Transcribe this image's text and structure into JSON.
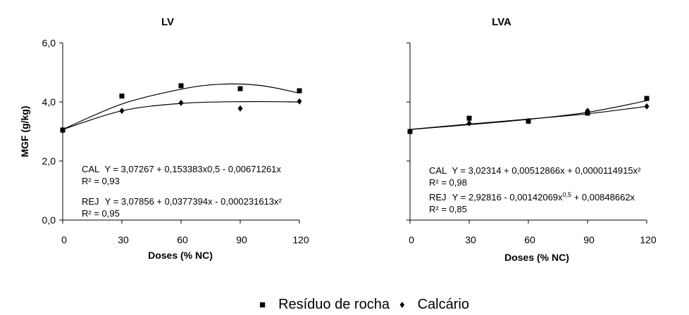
{
  "legend": {
    "residuo_symbol": "■",
    "residuo_label": "Resíduo de rocha",
    "calcario_symbol": "♦",
    "calcario_label": "Calcário"
  },
  "chart_data": [
    {
      "type": "scatter",
      "title": "LV",
      "xlabel": "Doses (% NC)",
      "ylabel": "MGF (g/kg)",
      "x_ticks": [
        "0",
        "30",
        "60",
        "90",
        "120"
      ],
      "y_ticks": [
        "0,0",
        "2,0",
        "4,0",
        "6,0"
      ],
      "xlim": [
        0,
        120
      ],
      "ylim": [
        0,
        6
      ],
      "grid": false,
      "series": [
        {
          "name": "Resíduo de rocha",
          "marker": "square",
          "x": [
            0,
            30,
            60,
            90,
            120
          ],
          "y": [
            3.05,
            4.2,
            4.55,
            4.45,
            4.38
          ],
          "fit": [
            [
              0,
              3.07
            ],
            [
              30,
              3.93
            ],
            [
              60,
              4.43
            ],
            [
              80,
              4.6
            ],
            [
              100,
              4.56
            ],
            [
              120,
              4.3
            ]
          ]
        },
        {
          "name": "Calcário",
          "marker": "diamond",
          "x": [
            0,
            30,
            60,
            90,
            120
          ],
          "y": [
            3.03,
            3.7,
            3.97,
            3.78,
            4.02
          ],
          "fit": [
            [
              0,
              3.07
            ],
            [
              30,
              3.7
            ],
            [
              60,
              3.95
            ],
            [
              90,
              4.01
            ],
            [
              120,
              4.0
            ]
          ]
        }
      ],
      "annotations": [
        {
          "label": "CAL",
          "equation": "Y = 3,07267 + 0,153383x0,5 - 0,00671261x",
          "r2": "R² = 0,93"
        },
        {
          "label": "REJ",
          "equation": "Y = 3,07856 + 0,0377394x - 0,000231613x²",
          "r2": "R² = 0,95"
        }
      ]
    },
    {
      "type": "scatter",
      "title": "LVA",
      "xlabel": "Doses (% NC)",
      "ylabel": "",
      "x_ticks": [
        "0",
        "30",
        "60",
        "90",
        "120"
      ],
      "xlim": [
        0,
        120
      ],
      "ylim": [
        0,
        6
      ],
      "grid": false,
      "series": [
        {
          "name": "Resíduo de rocha",
          "marker": "square",
          "x": [
            0,
            30,
            60,
            90,
            120
          ],
          "y": [
            3.0,
            3.45,
            3.35,
            3.62,
            4.12
          ],
          "fit": [
            [
              0,
              3.07
            ],
            [
              30,
              3.23
            ],
            [
              60,
              3.41
            ],
            [
              90,
              3.65
            ],
            [
              120,
              4.04
            ]
          ]
        },
        {
          "name": "Calcário",
          "marker": "diamond",
          "x": [
            0,
            30,
            60,
            90,
            120
          ],
          "y": [
            3.0,
            3.28,
            3.35,
            3.7,
            3.85
          ],
          "fit": [
            [
              0,
              3.07
            ],
            [
              30,
              3.25
            ],
            [
              60,
              3.42
            ],
            [
              90,
              3.6
            ],
            [
              120,
              3.85
            ]
          ]
        }
      ],
      "annotations": [
        {
          "label": "CAL",
          "equation": "Y = 3,02314 + 0,00512866x + 0,0000114915x²",
          "r2": "R² = 0,98"
        },
        {
          "label": "REJ",
          "equation": "Y = 2,92816 - 0,00142069x",
          "exponent": "0,5",
          "equation_tail": " + 0,00848662x",
          "r2": "R² = 0,85"
        }
      ]
    }
  ]
}
